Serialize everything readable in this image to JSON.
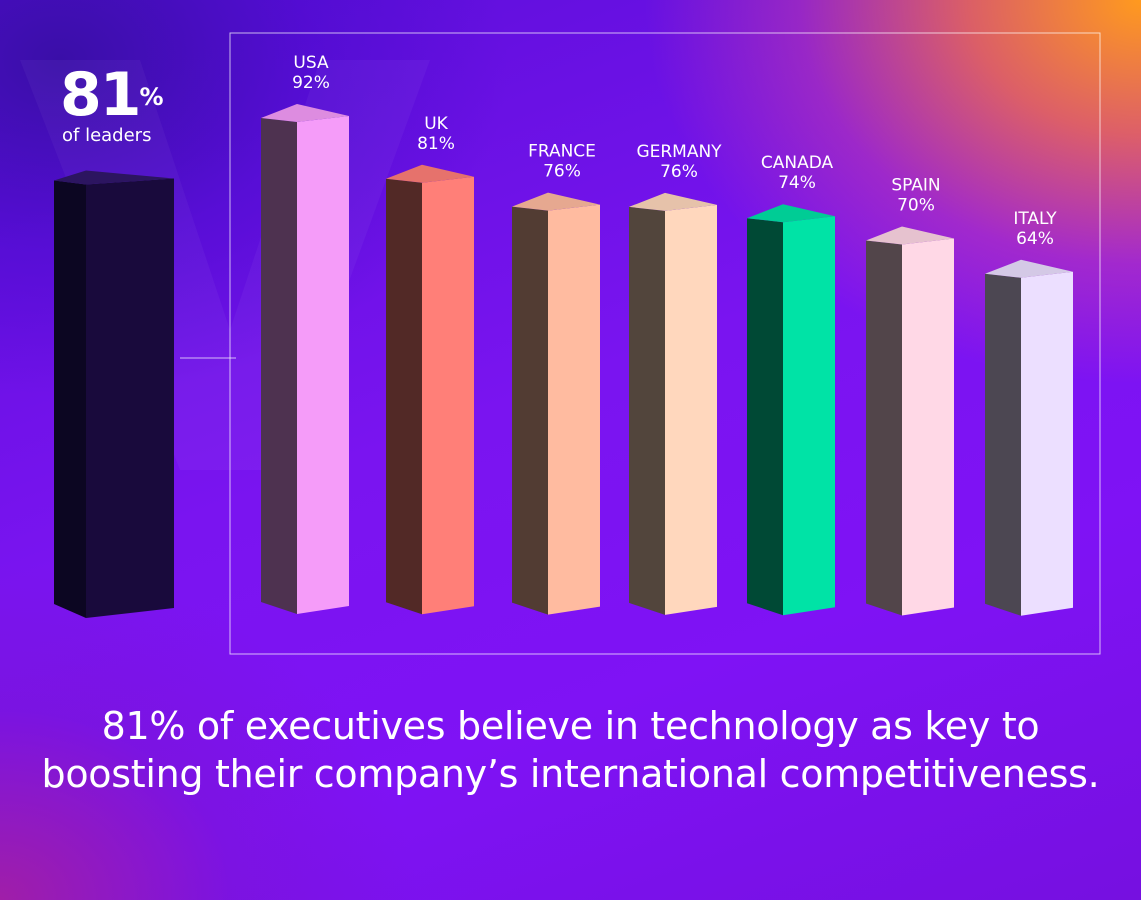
{
  "headline": {
    "value": "81",
    "unit": "%",
    "label": "of leaders"
  },
  "caption": "81% of executives believe in technology as key to boosting their company’s international competitiveness.",
  "chart_data": {
    "type": "bar",
    "title": "",
    "xlabel": "",
    "ylabel": "",
    "ylim": [
      0,
      100
    ],
    "grid": false,
    "categories": [
      "USA",
      "UK",
      "FRANCE",
      "GERMANY",
      "CANADA",
      "SPAIN",
      "ITALY"
    ],
    "values": [
      92,
      81,
      76,
      76,
      74,
      70,
      64
    ],
    "value_labels": [
      "92%",
      "81%",
      "76%",
      "76%",
      "74%",
      "70%",
      "64%"
    ],
    "colors": [
      "#f59cf9",
      "#ff7f78",
      "#ffbba0",
      "#ffd7bd",
      "#00e3a6",
      "#ffd8e6",
      "#ecdfff"
    ],
    "summary_bar": {
      "value": 81,
      "color": "#190a3c"
    }
  }
}
